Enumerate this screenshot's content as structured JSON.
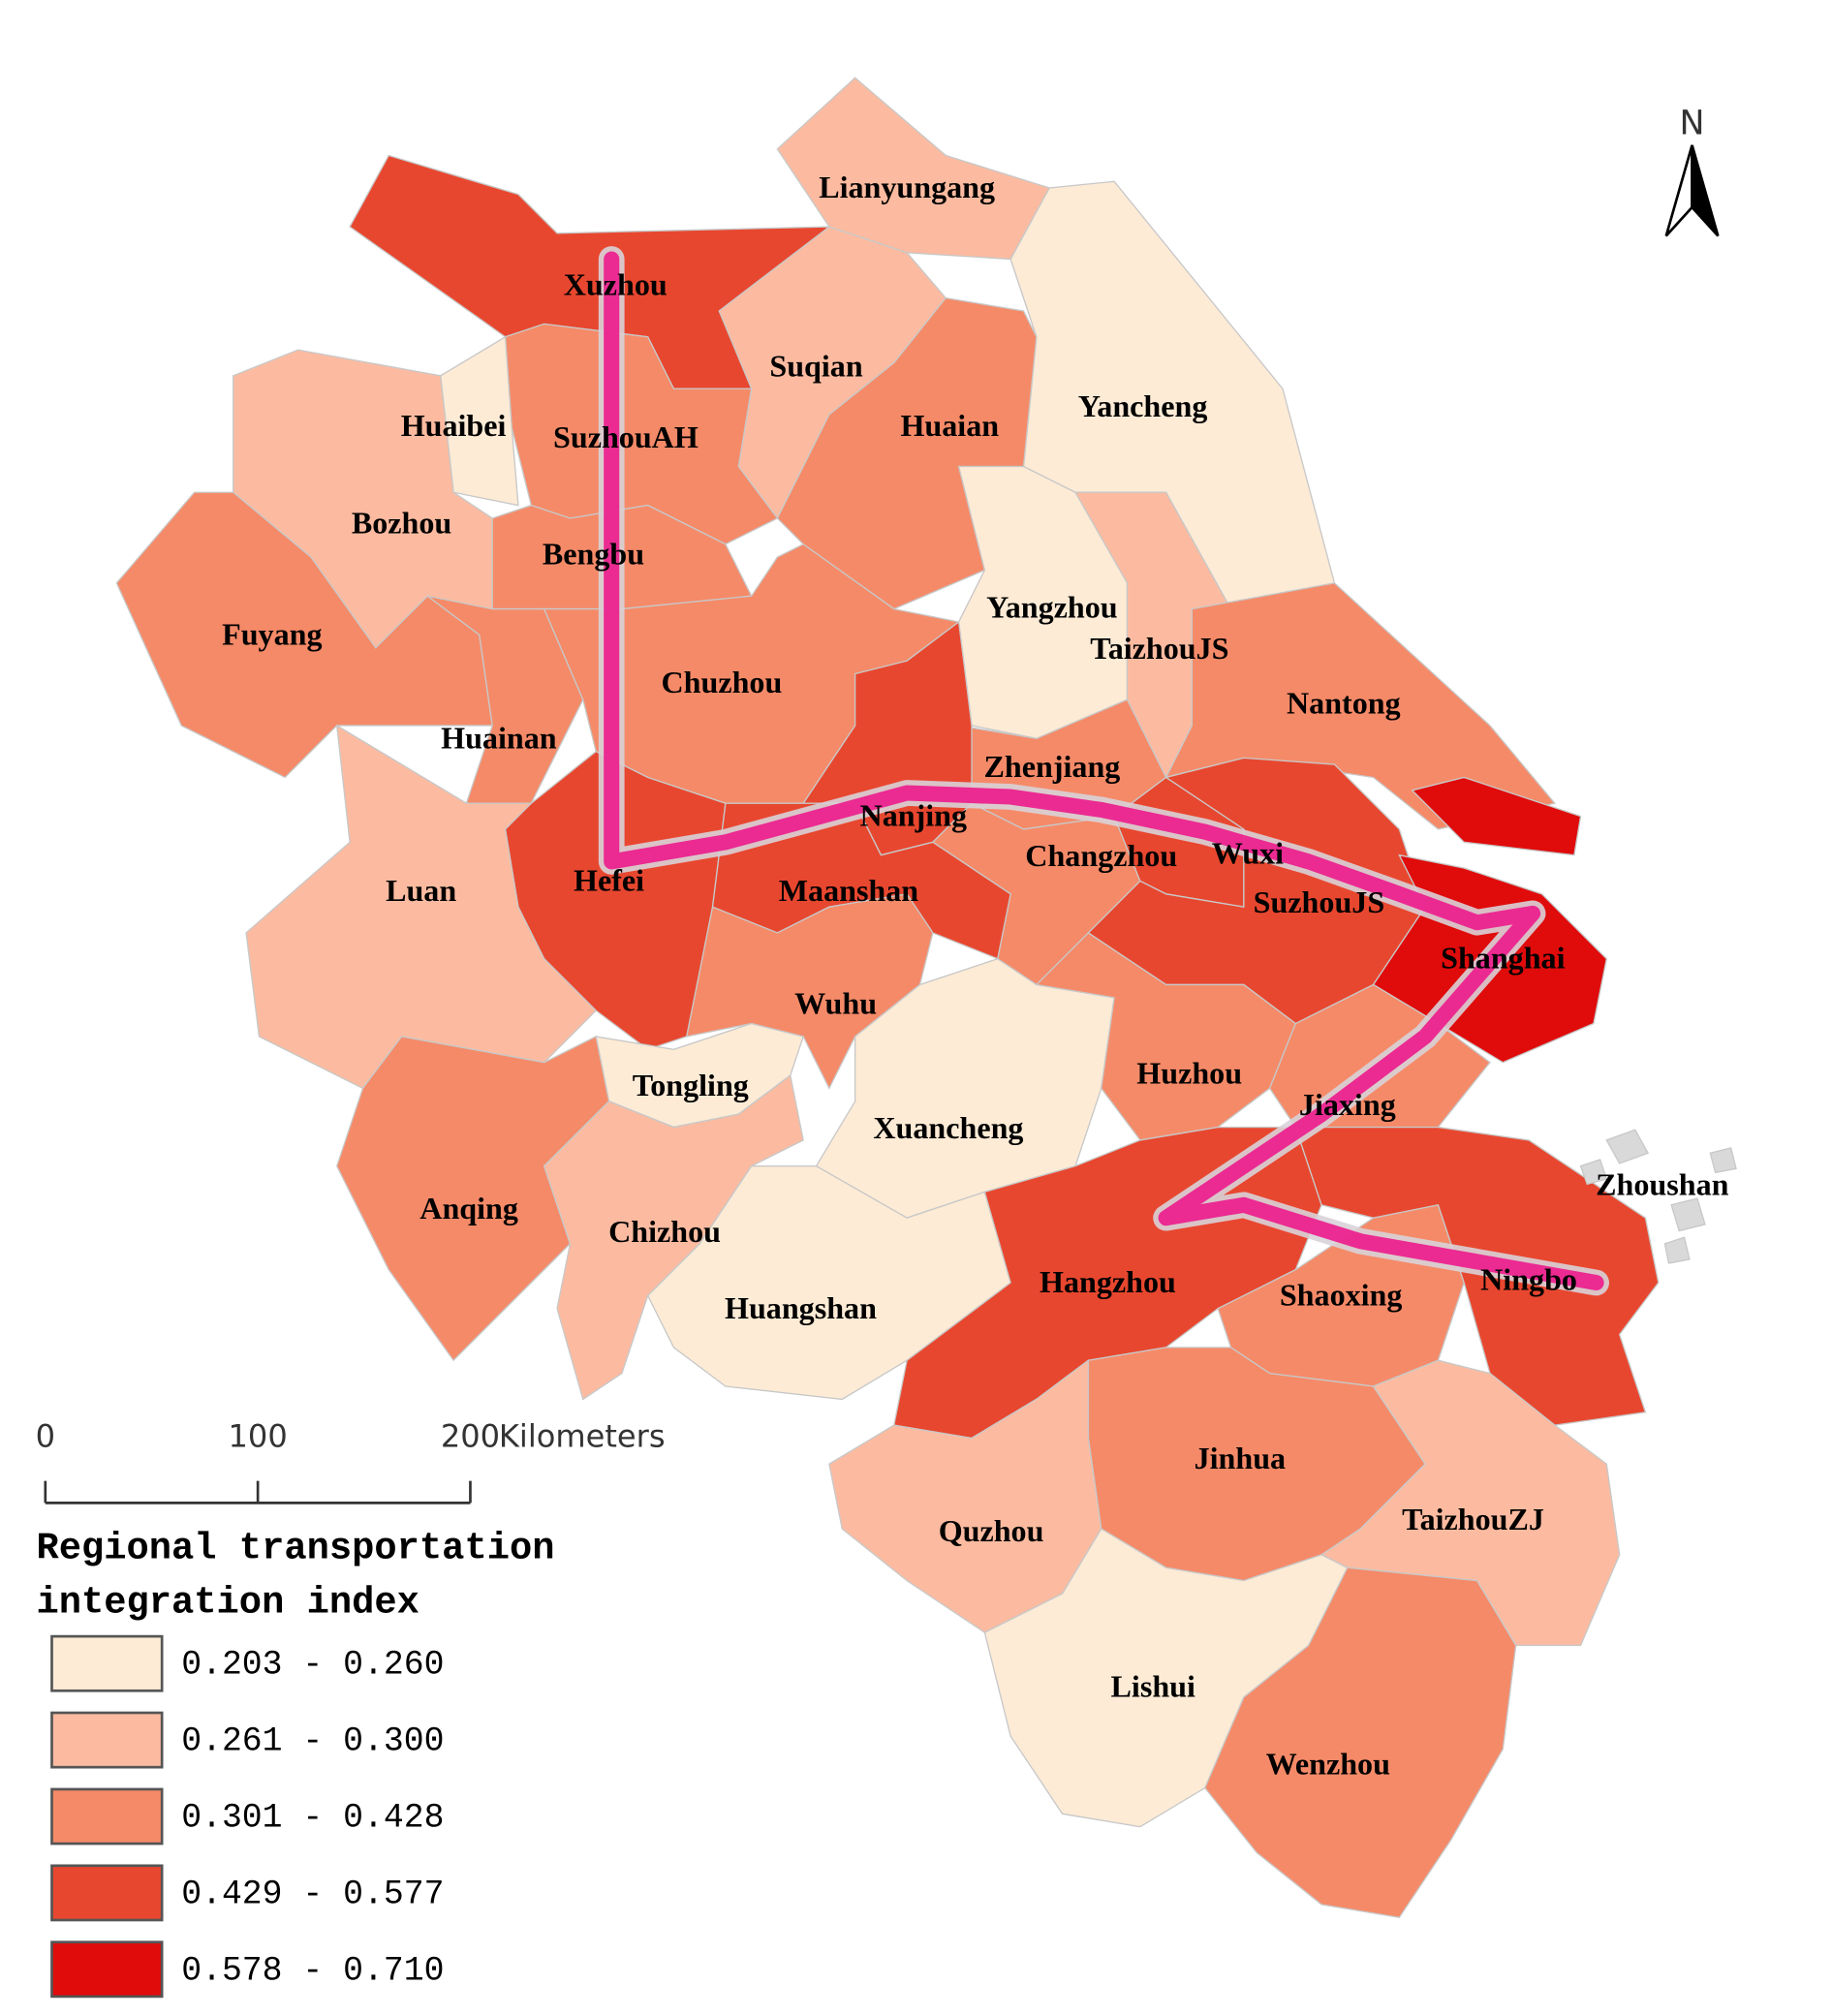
{
  "map": {
    "regions": [
      {
        "name": "Xuzhou",
        "color": "#e8472f"
      },
      {
        "name": "Lianyungang",
        "color": "#fcbba0"
      },
      {
        "name": "Suqian",
        "color": "#fcbba0"
      },
      {
        "name": "Yancheng",
        "color": "#fdebd6"
      },
      {
        "name": "Huaian",
        "color": "#f58a68"
      },
      {
        "name": "SuzhouAH",
        "color": "#f58a68"
      },
      {
        "name": "Huaibei",
        "color": "#fdebd6"
      },
      {
        "name": "Bozhou",
        "color": "#fcbba0"
      },
      {
        "name": "Bengbu",
        "color": "#f58a68"
      },
      {
        "name": "Fuyang",
        "color": "#f58a68"
      },
      {
        "name": "Huainan",
        "color": "#f58a68"
      },
      {
        "name": "Chuzhou",
        "color": "#f58a68"
      },
      {
        "name": "Yangzhou",
        "color": "#fdebd6"
      },
      {
        "name": "TaizhouJS",
        "color": "#fcbba0"
      },
      {
        "name": "Nantong",
        "color": "#f58a68"
      },
      {
        "name": "Zhenjiang",
        "color": "#f58a68"
      },
      {
        "name": "Nanjing",
        "color": "#e8472f"
      },
      {
        "name": "Changzhou",
        "color": "#f58a68"
      },
      {
        "name": "Wuxi",
        "color": "#e8472f"
      },
      {
        "name": "SuzhouJS",
        "color": "#e8472f"
      },
      {
        "name": "Shanghai",
        "color": "#e00b0b"
      },
      {
        "name": "Hefei",
        "color": "#e8472f"
      },
      {
        "name": "Luan",
        "color": "#fcbba0"
      },
      {
        "name": "Maanshan",
        "color": "#e8472f"
      },
      {
        "name": "Wuhu",
        "color": "#f58a68"
      },
      {
        "name": "Tongling",
        "color": "#fdebd6"
      },
      {
        "name": "Xuancheng",
        "color": "#fdebd6"
      },
      {
        "name": "Huzhou",
        "color": "#f58a68"
      },
      {
        "name": "Jiaxing",
        "color": "#f58a68"
      },
      {
        "name": "Anqing",
        "color": "#f58a68"
      },
      {
        "name": "Chizhou",
        "color": "#fcbba0"
      },
      {
        "name": "Huangshan",
        "color": "#fdebd6"
      },
      {
        "name": "Hangzhou",
        "color": "#e8472f"
      },
      {
        "name": "Shaoxing",
        "color": "#f58a68"
      },
      {
        "name": "Ningbo",
        "color": "#e8472f"
      },
      {
        "name": "Jinhua",
        "color": "#f58a68"
      },
      {
        "name": "Quzhou",
        "color": "#fcbba0"
      },
      {
        "name": "TaizhouZJ",
        "color": "#fcbba0"
      },
      {
        "name": "Lishui",
        "color": "#fdebd6"
      },
      {
        "name": "Wenzhou",
        "color": "#f58a68"
      },
      {
        "name": "Zhoushan",
        "color": "#d9d9d9"
      }
    ],
    "legend": {
      "title": [
        "Regional transportation",
        "integration index"
      ],
      "classes": [
        {
          "label": "0.203 - 0.260",
          "color": "#fdebd6"
        },
        {
          "label": "0.261 - 0.300",
          "color": "#fcbba0"
        },
        {
          "label": "0.301 - 0.428",
          "color": "#f58a68"
        },
        {
          "label": "0.429 - 0.577",
          "color": "#e8472f"
        },
        {
          "label": "0.578 - 0.710",
          "color": "#e00b0b"
        }
      ]
    },
    "scale_bar": {
      "ticks": [
        0,
        100,
        200
      ],
      "unit": "Kilometers"
    },
    "north": "N"
  }
}
